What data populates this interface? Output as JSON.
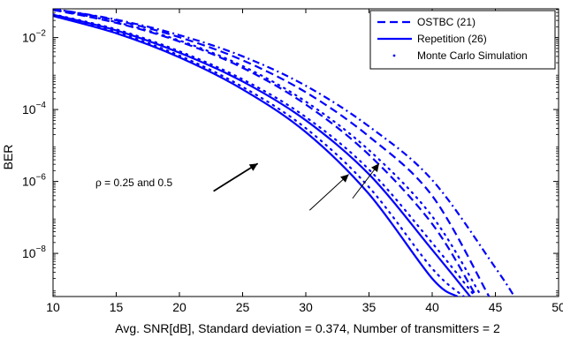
{
  "chart_data": {
    "type": "line",
    "xlabel": "Avg. SNR[dB], Standard deviation = 0.374, Number of transmitters = 2",
    "ylabel": "BER",
    "xlim": [
      10,
      50
    ],
    "ylim_log10": [
      -9.2,
      -1.2
    ],
    "y_scale": "log",
    "x_ticks": [
      10,
      15,
      20,
      25,
      30,
      35,
      40,
      45,
      50
    ],
    "x_tick_labels": [
      "10",
      "15",
      "20",
      "25",
      "30",
      "35",
      "40",
      "45",
      "50"
    ],
    "y_tick_exponents": [
      -8,
      -6,
      -4,
      -2
    ],
    "y_tick_base": "10",
    "y_tick_sups": [
      "−8",
      "−6",
      "−4",
      "−2"
    ],
    "legend_position": "top-right",
    "legend": [
      {
        "label": "OSTBC (21)",
        "style": "dashed"
      },
      {
        "label": "Repetition (26)",
        "style": "solid"
      },
      {
        "label": "Monte Carlo Simulation",
        "style": "dotted"
      }
    ],
    "color": "#0000ff",
    "series": [
      {
        "style": "solid",
        "x": [
          10,
          15,
          20,
          25,
          30,
          35,
          40,
          42
        ],
        "log10_y": [
          -1.4,
          -1.88,
          -2.55,
          -3.44,
          -4.63,
          -6.35,
          -8.7,
          -9.2
        ]
      },
      {
        "style": "solid",
        "x": [
          10,
          15,
          20,
          25,
          30,
          35,
          40,
          43
        ],
        "log10_y": [
          -1.36,
          -1.8,
          -2.42,
          -3.22,
          -4.3,
          -5.8,
          -7.9,
          -9.2
        ]
      },
      {
        "style": "dashed",
        "x": [
          10,
          15,
          20,
          25,
          30,
          35,
          40,
          43.5
        ],
        "log10_y": [
          -1.23,
          -1.59,
          -2.11,
          -2.84,
          -3.86,
          -5.26,
          -7.18,
          -9.2
        ]
      },
      {
        "style": "dashed",
        "x": [
          10,
          15,
          20,
          25,
          30,
          35,
          40,
          44.5
        ],
        "log10_y": [
          -1.2,
          -1.52,
          -1.99,
          -2.63,
          -3.52,
          -4.75,
          -6.4,
          -9.2
        ]
      },
      {
        "style": "dotted",
        "x": [
          10,
          15,
          20,
          25,
          30,
          35,
          40,
          42.5
        ],
        "log10_y": [
          -1.39,
          -1.85,
          -2.5,
          -3.37,
          -4.52,
          -6.16,
          -8.42,
          -9.2
        ]
      },
      {
        "style": "dotted",
        "x": [
          10,
          15,
          20,
          25,
          30,
          35,
          40,
          43.4
        ],
        "log10_y": [
          -1.35,
          -1.77,
          -2.38,
          -3.16,
          -4.21,
          -5.67,
          -7.71,
          -9.2
        ]
      },
      {
        "style": "dotted",
        "x": [
          10,
          15,
          20,
          25,
          30,
          35,
          40,
          43.9
        ],
        "log10_y": [
          -1.22,
          -1.57,
          -2.08,
          -2.79,
          -3.78,
          -5.13,
          -6.97,
          -9.2
        ]
      },
      {
        "style": "dashdot",
        "x": [
          10,
          15,
          20,
          25,
          30,
          35,
          40,
          45,
          46.5
        ],
        "log10_y": [
          -1.2,
          -1.5,
          -1.93,
          -2.52,
          -3.34,
          -4.47,
          -5.96,
          -8.4,
          -9.2
        ]
      }
    ],
    "annotation_text": "ρ = 0.25 and 0.5"
  }
}
